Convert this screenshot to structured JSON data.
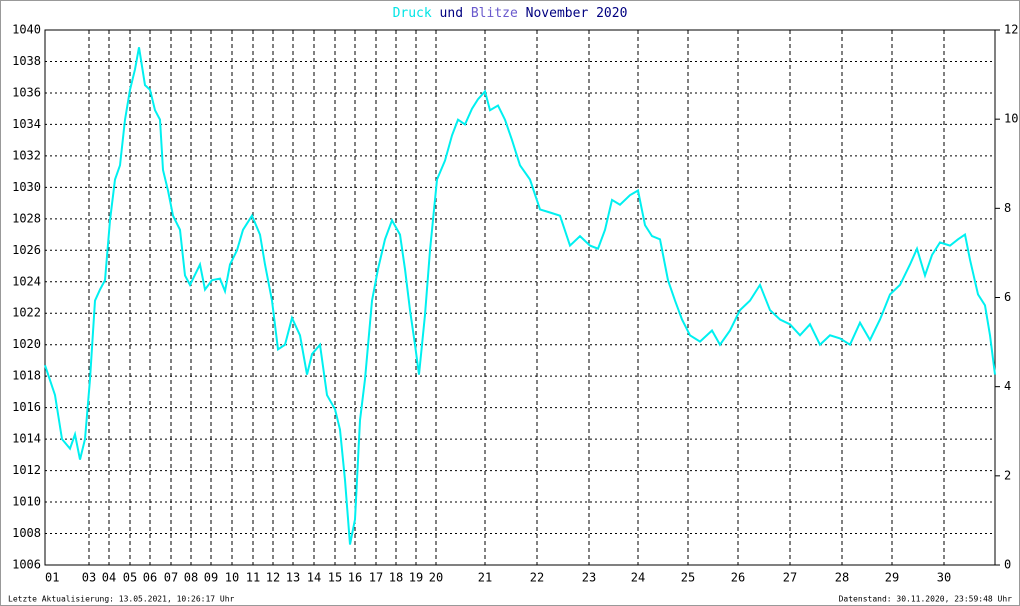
{
  "chart_data": {
    "type": "line",
    "title_parts": [
      {
        "text": "Druck",
        "color": "#00e5e5"
      },
      {
        "text": "und",
        "color": "#000080"
      },
      {
        "text": "Blitze",
        "color": "#6a5acd"
      },
      {
        "text": "November 2020",
        "color": "#000080"
      }
    ],
    "footer_left": "Letzte Aktualisierung: 13.05.2021, 10:26:17 Uhr",
    "footer_right": "Datenstand: 30.11.2020, 23:59:48 Uhr",
    "xlim": [
      0,
      950
    ],
    "xticks": [
      {
        "value": 0,
        "label": "01"
      },
      {
        "value": 44,
        "label": "03"
      },
      {
        "value": 64,
        "label": "04"
      },
      {
        "value": 85,
        "label": "05"
      },
      {
        "value": 105,
        "label": "06"
      },
      {
        "value": 126,
        "label": "07"
      },
      {
        "value": 146,
        "label": "08"
      },
      {
        "value": 166,
        "label": "09"
      },
      {
        "value": 187,
        "label": "10"
      },
      {
        "value": 208,
        "label": "11"
      },
      {
        "value": 228,
        "label": "12"
      },
      {
        "value": 248,
        "label": "13"
      },
      {
        "value": 269,
        "label": "14"
      },
      {
        "value": 290,
        "label": "15"
      },
      {
        "value": 310,
        "label": "16"
      },
      {
        "value": 331,
        "label": "17"
      },
      {
        "value": 351,
        "label": "18"
      },
      {
        "value": 371,
        "label": "19"
      },
      {
        "value": 391,
        "label": "20"
      },
      {
        "value": 440,
        "label": "21"
      },
      {
        "value": 492,
        "label": "22"
      },
      {
        "value": 544,
        "label": "23"
      },
      {
        "value": 593,
        "label": "24"
      },
      {
        "value": 643,
        "label": "25"
      },
      {
        "value": 693,
        "label": "26"
      },
      {
        "value": 745,
        "label": "27"
      },
      {
        "value": 797,
        "label": "28"
      },
      {
        "value": 847,
        "label": "29"
      },
      {
        "value": 899,
        "label": "30"
      }
    ],
    "ylim": [
      1006,
      1040
    ],
    "yticks": [
      1006,
      1008,
      1010,
      1012,
      1014,
      1016,
      1018,
      1020,
      1022,
      1024,
      1026,
      1028,
      1030,
      1032,
      1034,
      1036,
      1038,
      1040
    ],
    "y2lim": [
      0,
      12
    ],
    "y2ticks": [
      0,
      2,
      4,
      6,
      8,
      10,
      12
    ],
    "grid": true,
    "series": [
      {
        "name": "Druck",
        "color": "#00f0f0",
        "x": [
          0,
          10,
          17,
          25,
          30,
          35,
          40,
          45,
          50,
          55,
          60,
          65,
          70,
          75,
          80,
          85,
          90,
          94,
          100,
          105,
          110,
          115,
          118,
          123,
          128,
          135,
          140,
          145,
          155,
          160,
          167,
          175,
          180,
          185,
          192,
          198,
          207,
          215,
          220,
          227,
          233,
          240,
          247,
          255,
          262,
          267,
          275,
          282,
          290,
          295,
          300,
          305,
          310,
          315,
          320,
          327,
          333,
          340,
          347,
          355,
          360,
          365,
          370,
          374,
          380,
          385,
          392,
          400,
          407,
          413,
          420,
          427,
          433,
          440,
          445,
          453,
          460,
          467,
          475,
          485,
          495,
          505,
          515,
          525,
          535,
          545,
          553,
          560,
          567,
          575,
          585,
          593,
          600,
          607,
          615,
          623,
          630,
          637,
          645,
          655,
          667,
          675,
          685,
          695,
          705,
          715,
          725,
          735,
          745,
          755,
          765,
          775,
          785,
          795,
          805,
          815,
          825,
          835,
          845,
          855,
          865,
          872,
          880,
          887,
          895,
          905,
          913,
          920,
          925,
          933,
          940,
          945,
          950
        ],
        "values": [
          1018.7,
          1016.8,
          1014.0,
          1013.4,
          1014.3,
          1012.7,
          1014.0,
          1017.8,
          1022.8,
          1023.5,
          1024.1,
          1027.9,
          1030.5,
          1031.4,
          1034.3,
          1036.2,
          1037.5,
          1038.9,
          1036.5,
          1036.2,
          1034.9,
          1034.3,
          1031.1,
          1029.8,
          1028.2,
          1027.3,
          1024.4,
          1023.8,
          1025.1,
          1023.5,
          1024.1,
          1024.2,
          1023.4,
          1025.1,
          1026.0,
          1027.3,
          1028.2,
          1027.0,
          1025.1,
          1022.8,
          1019.7,
          1020.0,
          1021.7,
          1020.6,
          1018.1,
          1019.4,
          1020.0,
          1016.8,
          1015.9,
          1014.6,
          1011.4,
          1007.3,
          1008.9,
          1015.2,
          1017.8,
          1022.8,
          1024.8,
          1026.7,
          1027.9,
          1027.0,
          1024.8,
          1022.2,
          1020.0,
          1018.1,
          1021.9,
          1026.0,
          1030.5,
          1031.7,
          1033.3,
          1034.3,
          1034.0,
          1035.0,
          1035.6,
          1036.1,
          1034.9,
          1035.2,
          1034.3,
          1033.0,
          1031.4,
          1030.5,
          1028.6,
          1028.4,
          1028.2,
          1026.3,
          1026.9,
          1026.3,
          1026.1,
          1027.3,
          1029.2,
          1028.9,
          1029.5,
          1029.8,
          1027.6,
          1026.9,
          1026.7,
          1024.1,
          1022.8,
          1021.6,
          1020.6,
          1020.2,
          1020.9,
          1020.0,
          1020.9,
          1022.2,
          1022.8,
          1023.8,
          1022.2,
          1021.6,
          1021.3,
          1020.6,
          1021.3,
          1020.0,
          1020.6,
          1020.4,
          1020.0,
          1021.4,
          1020.3,
          1021.6,
          1023.2,
          1023.8,
          1025.1,
          1026.1,
          1024.4,
          1025.7,
          1026.5,
          1026.3,
          1026.7,
          1027.0,
          1025.4,
          1023.2,
          1022.5,
          1020.6,
          1018.1
        ]
      }
    ]
  }
}
